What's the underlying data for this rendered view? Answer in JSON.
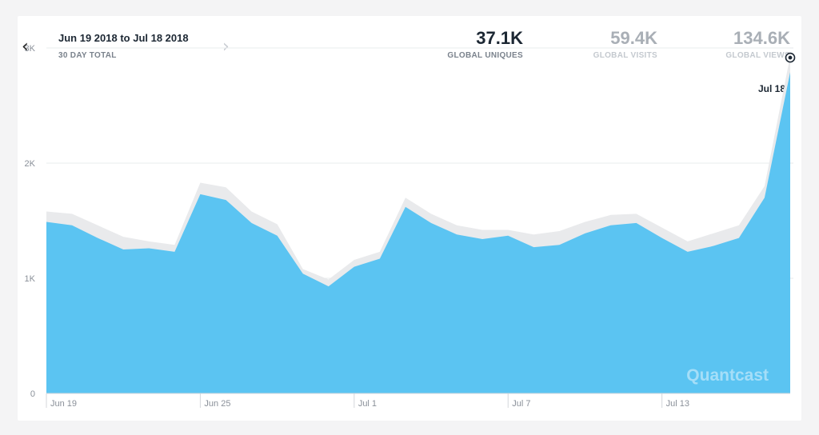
{
  "header": {
    "date_range": "Jun 19 2018 to Jul 18 2018",
    "subtitle": "30 DAY TOTAL",
    "prev_icon": "chevron-left-icon",
    "next_icon": "chevron-right-icon"
  },
  "stats": [
    {
      "value": "37.1K",
      "label": "GLOBAL UNIQUES",
      "active": true
    },
    {
      "value": "59.4K",
      "label": "GLOBAL VISITS",
      "active": false
    },
    {
      "value": "134.6K",
      "label": "GLOBAL VIEWS",
      "active": false
    }
  ],
  "hover": {
    "date": "Jul 18"
  },
  "watermark": "Quantcast",
  "colors": {
    "area": "#5bc4f2",
    "band": "#e9eaec",
    "grid": "#e6e8eb",
    "axis": "#d4d7db"
  },
  "chart_data": {
    "type": "area",
    "x": [
      "Jun 19",
      "Jun 20",
      "Jun 21",
      "Jun 22",
      "Jun 23",
      "Jun 24",
      "Jun 25",
      "Jun 26",
      "Jun 27",
      "Jun 28",
      "Jun 29",
      "Jun 30",
      "Jul 1",
      "Jul 2",
      "Jul 3",
      "Jul 4",
      "Jul 5",
      "Jul 6",
      "Jul 7",
      "Jul 8",
      "Jul 9",
      "Jul 10",
      "Jul 11",
      "Jul 12",
      "Jul 13",
      "Jul 14",
      "Jul 15",
      "Jul 16",
      "Jul 17",
      "Jul 18"
    ],
    "values": [
      1490,
      1460,
      1350,
      1250,
      1260,
      1230,
      1730,
      1680,
      1480,
      1370,
      1040,
      930,
      1100,
      1170,
      1620,
      1480,
      1380,
      1340,
      1370,
      1270,
      1290,
      1390,
      1460,
      1480,
      1350,
      1230,
      1280,
      1350,
      1700,
      2790
    ],
    "band_upper": [
      1580,
      1560,
      1460,
      1360,
      1320,
      1290,
      1830,
      1790,
      1580,
      1470,
      1080,
      990,
      1160,
      1230,
      1700,
      1560,
      1460,
      1420,
      1420,
      1380,
      1410,
      1490,
      1550,
      1560,
      1440,
      1320,
      1390,
      1460,
      1800,
      2930
    ],
    "ylim": [
      0,
      3000
    ],
    "yticks": [
      0,
      1000,
      2000,
      3000
    ],
    "ytick_labels": [
      "0",
      "1K",
      "2K",
      "3K"
    ],
    "xtick_labels": [
      "Jun 19",
      "Jun 25",
      "Jul 1",
      "Jul 7",
      "Jul 13"
    ],
    "xtick_indices": [
      0,
      6,
      12,
      18,
      24
    ],
    "highlight_index": 29,
    "grid": true,
    "title": "",
    "xlabel": "",
    "ylabel": ""
  }
}
